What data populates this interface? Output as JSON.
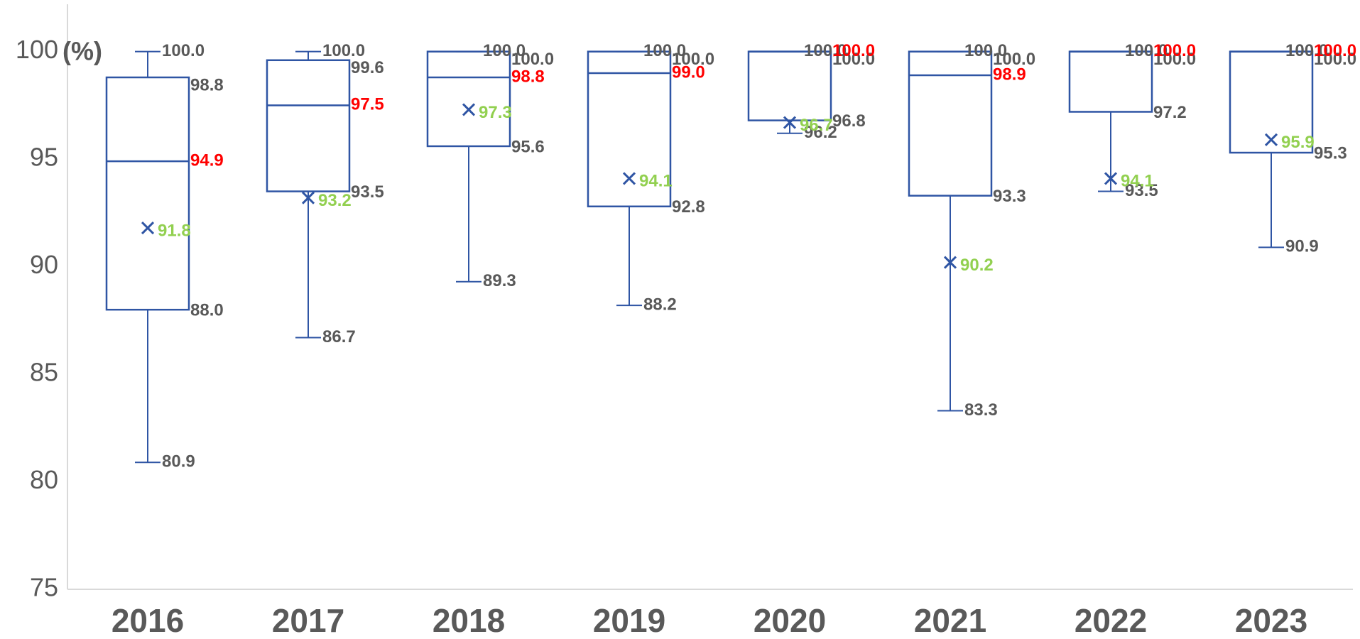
{
  "chart_data": {
    "type": "box",
    "y_label": "(%)",
    "categories": [
      "2016",
      "2017",
      "2018",
      "2019",
      "2020",
      "2021",
      "2022",
      "2023"
    ],
    "min": {
      "values": [
        80.9,
        86.7,
        89.3,
        88.2,
        96.2,
        83.3,
        93.5,
        90.9
      ],
      "value_labels": [
        "80.9",
        "86.7",
        "89.3",
        "88.2",
        "96.2",
        "83.3",
        "93.5",
        "90.9"
      ]
    },
    "q1": {
      "values": [
        88.0,
        93.5,
        95.6,
        92.8,
        96.8,
        93.3,
        97.2,
        95.3
      ],
      "value_labels": [
        "88.0",
        "93.5",
        "95.6",
        "92.8",
        "96.8",
        "93.3",
        "97.2",
        "95.3"
      ]
    },
    "median": {
      "values": [
        94.9,
        97.5,
        98.8,
        99.0,
        100.0,
        98.9,
        100.0,
        100.0
      ],
      "value_labels": [
        "94.9",
        "97.5",
        "98.8",
        "99.0",
        "100.0",
        "98.9",
        "100.0",
        "100.0"
      ]
    },
    "q3": {
      "values": [
        98.8,
        99.6,
        100.0,
        100.0,
        100.0,
        100.0,
        100.0,
        100.0
      ],
      "value_labels": [
        "98.8",
        "99.6",
        "100.0",
        "100.0",
        "100.0",
        "100.0",
        "100.0",
        "100.0"
      ]
    },
    "max": {
      "values": [
        100.0,
        100.0,
        100.0,
        100.0,
        100.0,
        100.0,
        100.0,
        100.0
      ],
      "value_labels": [
        "100.0",
        "100.0",
        "100.0",
        "100.0",
        "100.0",
        "100.0",
        "100.0",
        "100.0"
      ]
    },
    "mean": {
      "values": [
        91.8,
        93.2,
        97.3,
        94.1,
        96.7,
        90.2,
        94.1,
        95.9
      ]
    },
    "ylim": [
      75,
      102.2
    ],
    "yticks": [
      75,
      80,
      85,
      90,
      95,
      100
    ],
    "grid": false,
    "color": "#2f55a4",
    "label_color": "#595959",
    "median_label_color": "#ff0000",
    "mean_label_color": "#92d050"
  }
}
